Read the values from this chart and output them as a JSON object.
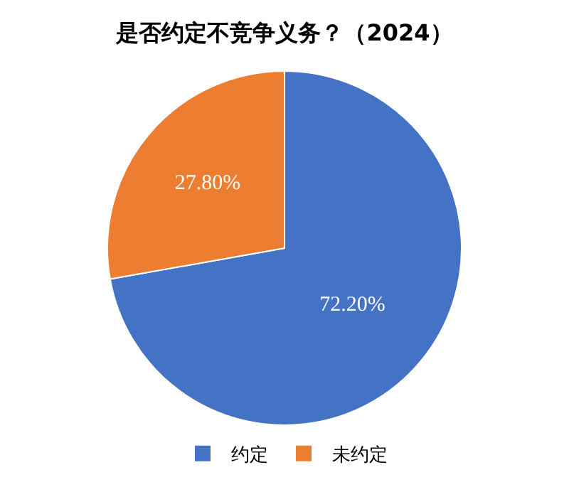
{
  "chart_data": {
    "type": "pie",
    "title": "是否约定不竞争义务？（2024）",
    "categories": [
      "约定",
      "未约定"
    ],
    "values": [
      72.2,
      27.8
    ],
    "value_labels": [
      "72.20%",
      "27.80%"
    ],
    "colors": [
      "#4472c4",
      "#ed7d31"
    ],
    "legend": "bottom"
  }
}
